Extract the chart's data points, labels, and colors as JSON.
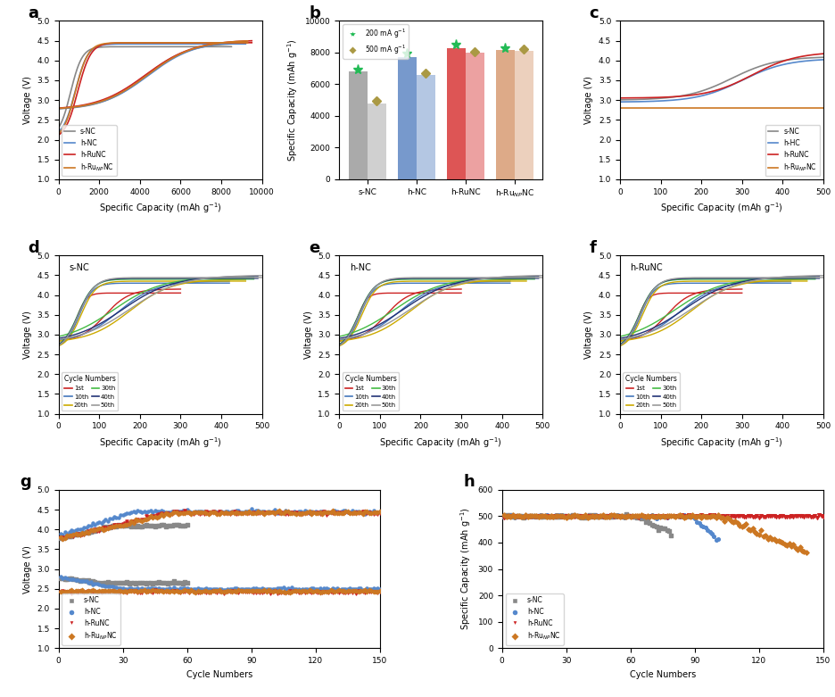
{
  "colors": {
    "s_NC": "#888888",
    "h_NC": "#5588CC",
    "h_RuNC": "#CC2222",
    "h_RuNpNC": "#CC7722"
  },
  "cycle_colors": {
    "1st": "#CC2222",
    "10th": "#4477BB",
    "20th": "#CCAA00",
    "30th": "#44BB44",
    "40th": "#223377",
    "50th": "#999999"
  },
  "bar200": [
    6800,
    7700,
    8300,
    8150
  ],
  "bar500": [
    4800,
    6600,
    8000,
    8100
  ],
  "star200": [
    6950,
    7950,
    8500,
    8250
  ],
  "diamond500": [
    4950,
    6700,
    8080,
    8200
  ]
}
